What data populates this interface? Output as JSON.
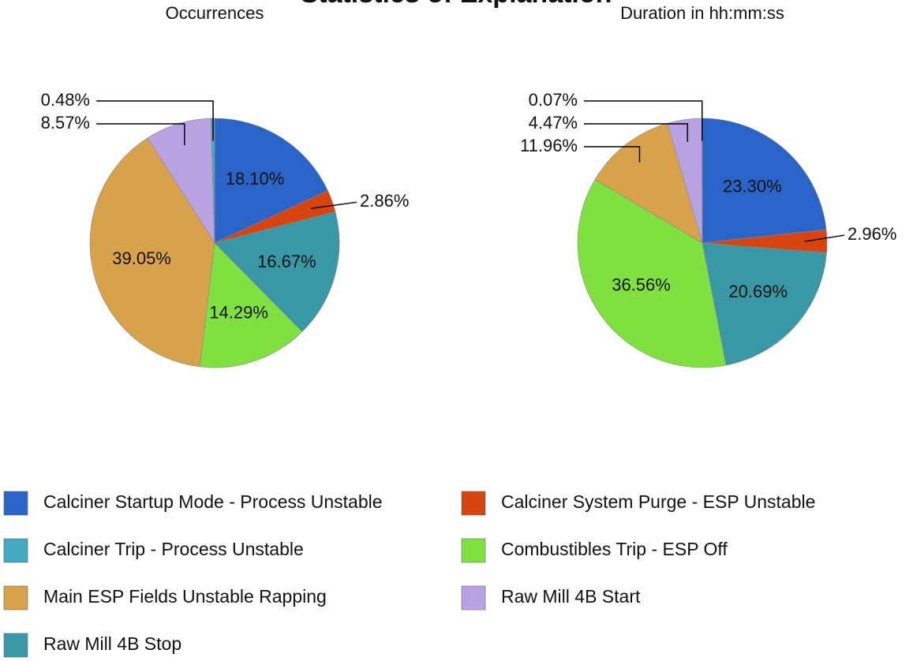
{
  "title": "Statistics of Explanation",
  "legend": [
    {
      "name": "Calciner Startup Mode - Process Unstable",
      "color": "#2a64c8"
    },
    {
      "name": "Calciner System Purge - ESP Unstable",
      "color": "#d84410"
    },
    {
      "name": "Calciner Trip - Process Unstable",
      "color": "#44aac2"
    },
    {
      "name": "Combustibles Trip - ESP Off",
      "color": "#80e040"
    },
    {
      "name": "Main ESP Fields Unstable Rapping",
      "color": "#d8a24a"
    },
    {
      "name": "Raw Mill 4B Start",
      "color": "#b8a2e2"
    },
    {
      "name": "Raw Mill 4B Stop",
      "color": "#3898a6"
    }
  ],
  "chart_data": [
    {
      "type": "pie",
      "title": "Occurrences",
      "categories": [
        "Calciner Startup Mode - Process Unstable",
        "Calciner System Purge - ESP Unstable",
        "Raw Mill 4B Stop",
        "Combustibles Trip - ESP Off",
        "Main ESP Fields Unstable Rapping",
        "Raw Mill 4B Start",
        "Calciner Trip - Process Unstable"
      ],
      "values": [
        18.1,
        2.86,
        16.67,
        14.29,
        39.05,
        8.57,
        0.48
      ],
      "value_labels": [
        "18.10%",
        "2.86%",
        "16.67%",
        "14.29%",
        "39.05%",
        "8.57%",
        "0.48%"
      ]
    },
    {
      "type": "pie",
      "title": "Duration in hh:mm:ss",
      "categories": [
        "Calciner Startup Mode - Process Unstable",
        "Calciner System Purge - ESP Unstable",
        "Raw Mill 4B Stop",
        "Combustibles Trip - ESP Off",
        "Main ESP Fields Unstable Rapping",
        "Raw Mill 4B Start",
        "Calciner Trip - Process Unstable"
      ],
      "values": [
        23.3,
        2.96,
        20.69,
        36.56,
        11.96,
        4.47,
        0.07
      ],
      "value_labels": [
        "23.30%",
        "2.96%",
        "20.69%",
        "36.56%",
        "11.96%",
        "4.47%",
        "0.07%"
      ]
    }
  ]
}
